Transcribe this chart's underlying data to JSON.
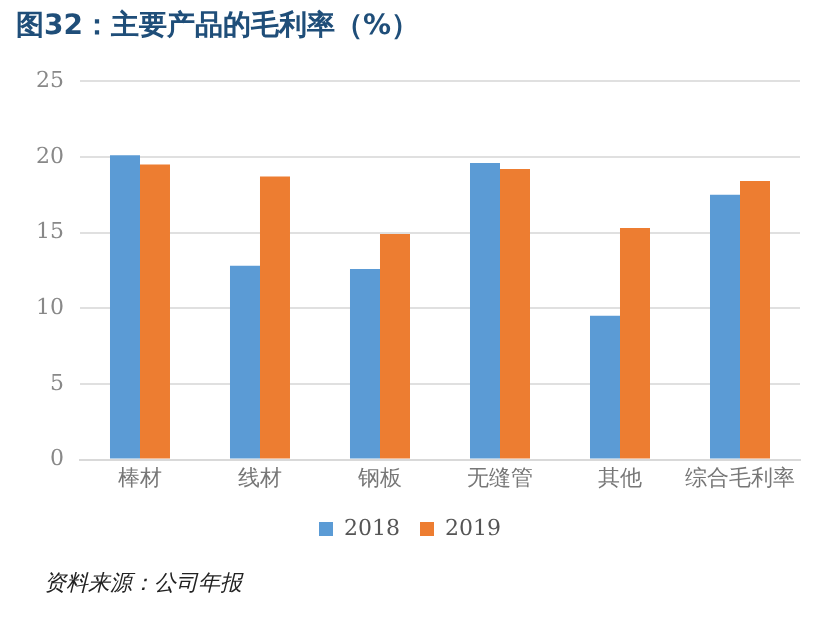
{
  "chart_data": {
    "type": "bar",
    "title": "图32：主要产品的毛利率（%）",
    "categories": [
      "棒材",
      "线材",
      "钢板",
      "无缝管",
      "其他",
      "综合毛利率"
    ],
    "series": [
      {
        "name": "2018",
        "color": "#5b9bd5",
        "values": [
          20.1,
          12.8,
          12.6,
          19.6,
          9.5,
          17.5
        ]
      },
      {
        "name": "2019",
        "color": "#ed7d31",
        "values": [
          19.5,
          18.7,
          14.9,
          19.2,
          15.3,
          18.4
        ]
      }
    ],
    "ylim": [
      0,
      25
    ],
    "yticks": [
      0,
      5,
      10,
      15,
      20,
      25
    ],
    "grid": "y",
    "legend": "bottom",
    "annotations": [
      "资料来源：公司年报"
    ]
  }
}
